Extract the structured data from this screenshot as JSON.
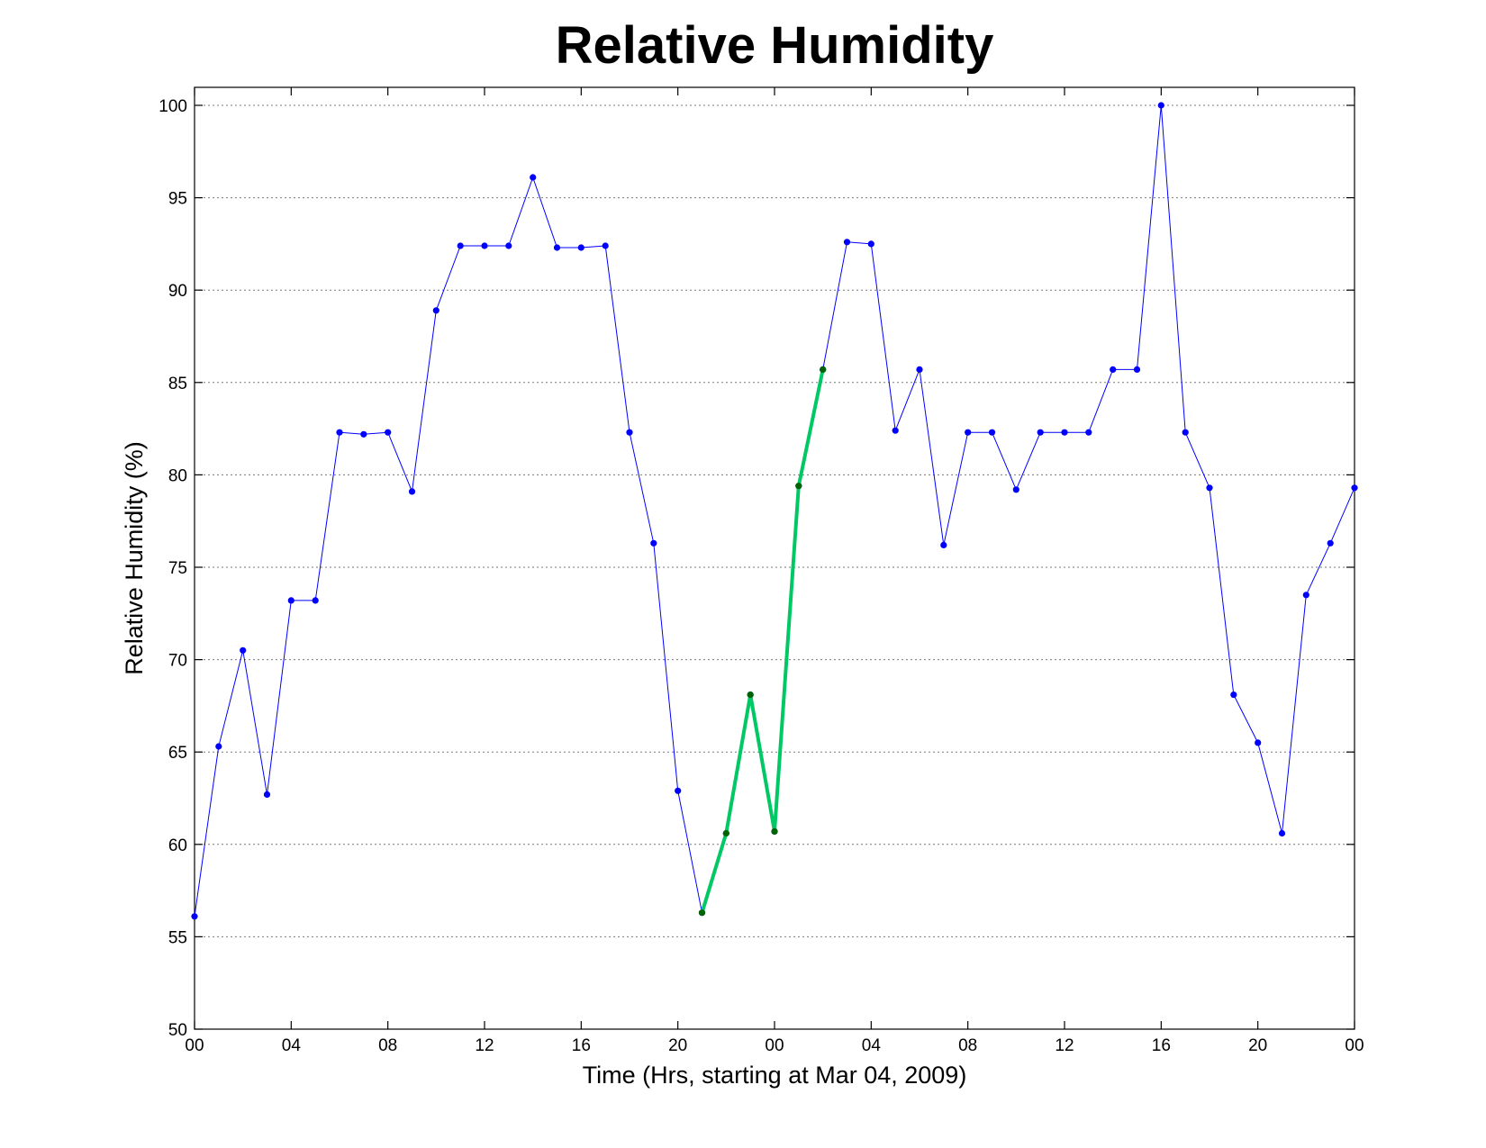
{
  "chart_data": {
    "type": "line",
    "title": "Relative Humidity",
    "xlabel": "Time (Hrs, starting at Mar 04, 2009)",
    "ylabel": "Relative Humidity (%)",
    "xlim": [
      0,
      48
    ],
    "ylim": [
      50,
      100
    ],
    "yticks": [
      50,
      55,
      60,
      65,
      70,
      75,
      80,
      85,
      90,
      95,
      100
    ],
    "xticks": [
      0,
      4,
      8,
      12,
      16,
      20,
      24,
      28,
      32,
      36,
      40,
      44,
      48
    ],
    "xtick_labels": [
      "00",
      "04",
      "08",
      "12",
      "16",
      "20",
      "00",
      "04",
      "08",
      "12",
      "16",
      "20",
      "00"
    ],
    "grid": true,
    "series": [
      {
        "color": "#0000ff",
        "marker_color": "#0000ff",
        "line_width": 1,
        "x": [
          0,
          1,
          2,
          3,
          4,
          5,
          6,
          7,
          8,
          9,
          10,
          11,
          12,
          13,
          14,
          15,
          16,
          17,
          18,
          19,
          20,
          21,
          22,
          23,
          24,
          25,
          26,
          27,
          28,
          29,
          30,
          31,
          32,
          33,
          34,
          35,
          36,
          37,
          38,
          39,
          40,
          41,
          42,
          43,
          44,
          45,
          46,
          47,
          48
        ],
        "y": [
          56.1,
          65.3,
          70.5,
          62.7,
          73.2,
          73.2,
          82.3,
          82.2,
          82.3,
          79.1,
          88.9,
          92.4,
          92.4,
          92.4,
          96.1,
          92.3,
          92.3,
          92.4,
          82.3,
          76.3,
          62.9,
          56.3,
          60.6,
          68.1,
          60.7,
          79.4,
          85.7,
          92.6,
          92.5,
          82.4,
          85.7,
          76.2,
          82.3,
          82.3,
          79.2,
          82.3,
          82.3,
          82.3,
          85.7,
          85.7,
          100,
          82.3,
          79.3,
          68.1,
          65.5,
          60.6,
          73.5,
          76.3,
          79.3
        ]
      },
      {
        "color": "#00c864",
        "marker_color": "#006400",
        "line_width": 4,
        "x": [
          21,
          22,
          23,
          24,
          25,
          26
        ],
        "y": [
          56.3,
          60.6,
          68.1,
          60.7,
          79.4,
          85.7
        ]
      }
    ]
  }
}
